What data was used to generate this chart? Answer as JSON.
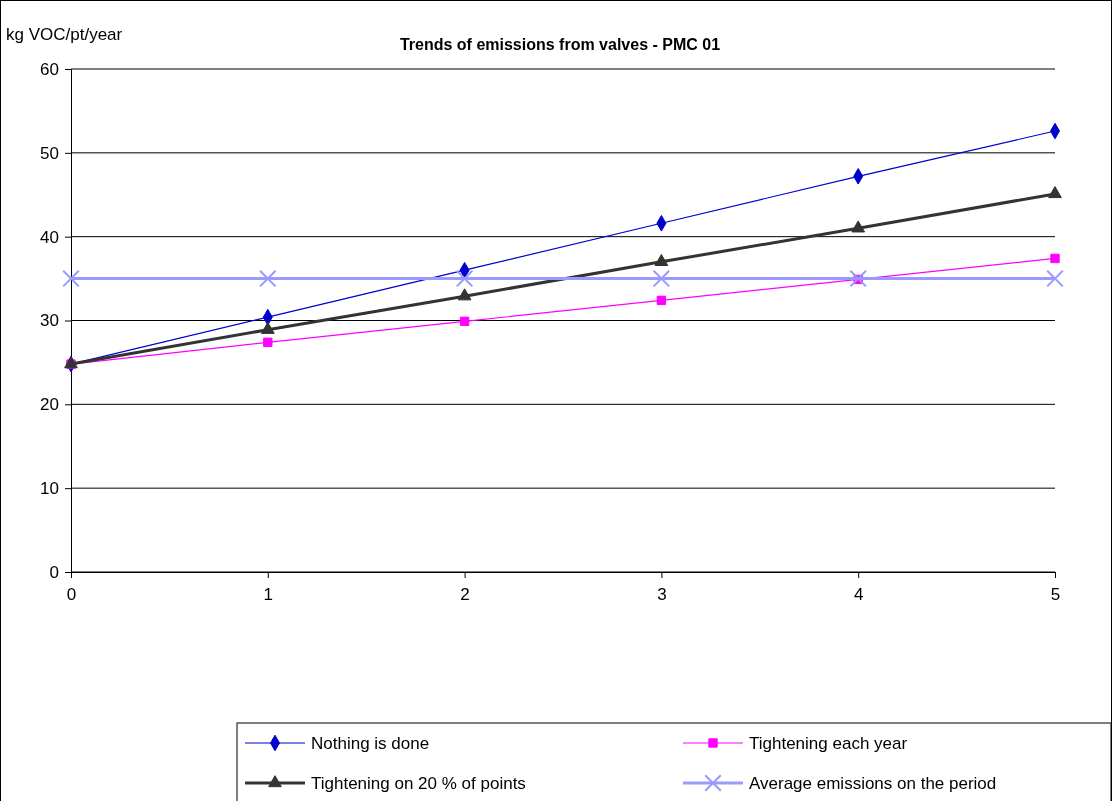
{
  "chart_data": {
    "type": "line",
    "title": "Trends of emissions from valves - PMC 01",
    "ylabel": "kg VOC/pt/year",
    "x": [
      0,
      1,
      2,
      3,
      4,
      5
    ],
    "xlim": [
      0,
      5
    ],
    "xticks": [
      0,
      1,
      2,
      3,
      4,
      5
    ],
    "ylim": [
      0,
      60
    ],
    "yticks": [
      0,
      10,
      20,
      30,
      40,
      50,
      60
    ],
    "grid": "y",
    "legend": "bottom",
    "series": [
      {
        "name": "Nothing is done",
        "color": "#0000cc",
        "marker": "diamond",
        "values": [
          24.8,
          30.4,
          36,
          41.6,
          47.2,
          52.6
        ]
      },
      {
        "name": "Tightening each year",
        "color": "#ff00ff",
        "marker": "square",
        "values": [
          24.8,
          27.4,
          29.9,
          32.4,
          34.9,
          37.4
        ]
      },
      {
        "name": "Tightening on 20 % of points",
        "color": "#333333",
        "marker": "triangle",
        "values": [
          24.8,
          28.9,
          32.9,
          37,
          41,
          45.1
        ]
      },
      {
        "name": "Average emissions on the period",
        "color": "#9999ff",
        "marker": "cross",
        "values": [
          35,
          35,
          35,
          35,
          35,
          35
        ]
      }
    ]
  }
}
